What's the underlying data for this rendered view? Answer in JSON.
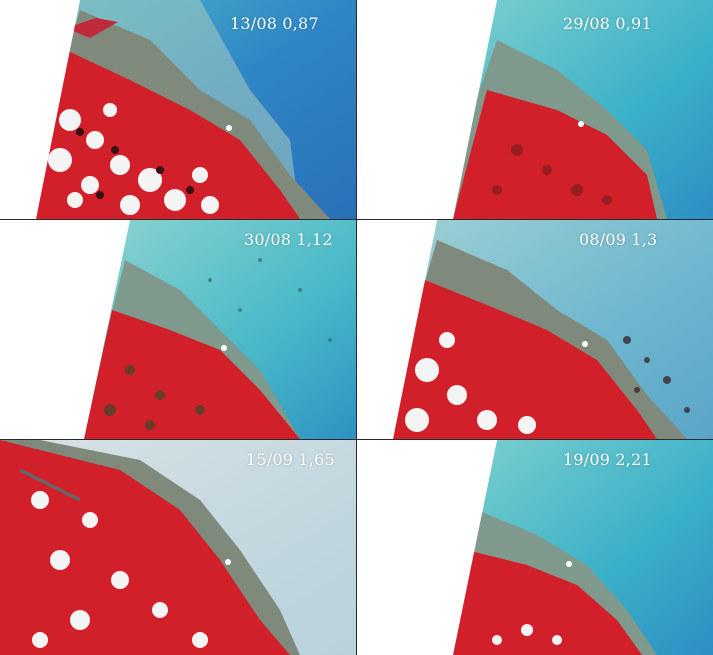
{
  "panels": [
    {
      "label": "13/08 0,87",
      "palette": "cloudy"
    },
    {
      "label": "29/08 0,91",
      "palette": "clear"
    },
    {
      "label": "30/08 1,12",
      "palette": "clear"
    },
    {
      "label": "08/09 1,3",
      "palette": "cloudy"
    },
    {
      "label": "15/09 1,65",
      "palette": "hazy"
    },
    {
      "label": "19/09 2,21",
      "palette": "clear"
    }
  ],
  "colors": {
    "ocean_deep": "#2f86c6",
    "ocean_shallow": "#5cc4c8",
    "turbid_water": "#a9c7c6",
    "mudflat": "#7f8a7c",
    "vegetation_red": "#d2202a",
    "cloud": "#f4f4f4",
    "divider": "#2b2b2b"
  }
}
